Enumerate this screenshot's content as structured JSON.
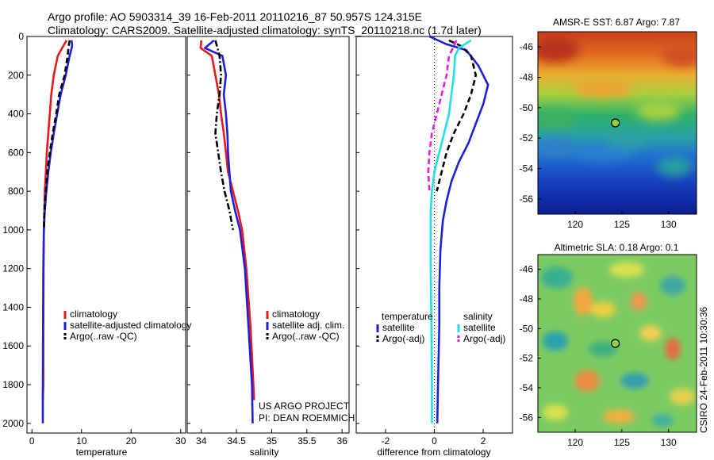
{
  "header": {
    "line1": "Argo profile: AO 5903314_39 16-Feb-2011 20110216_87 50.957S 124.315E",
    "line2": "Climatology: CARS2009. Satellite-adjusted climatology: synTS_20110218.nc (1.7d later)"
  },
  "credits": {
    "project": "US ARGO PROJECT",
    "pi": "PI: DEAN ROEMMICH",
    "stamp": "CSIRO 24-Feb-2011 10:30:36"
  },
  "colors": {
    "red": "#e41a1c",
    "blue": "#1f1fd6",
    "black": "#000000",
    "cyan": "#22e0e0",
    "magenta": "#e020e0"
  },
  "chart_data": [
    {
      "type": "line",
      "xlabel": "temperature",
      "ylim": [
        2050,
        0
      ],
      "xlim": [
        -1,
        31
      ],
      "xticks": [
        "0",
        "10",
        "20",
        "30"
      ],
      "yticks": [
        "0",
        "200",
        "400",
        "600",
        "800",
        "1000",
        "1200",
        "1400",
        "1600",
        "1800",
        "2000"
      ],
      "series": [
        {
          "name": "climatology",
          "color": "red",
          "dash": "solid",
          "x": [
            7.0,
            6.3,
            5.2,
            4.4,
            3.9,
            3.6,
            3.3,
            3.0,
            2.8,
            2.6,
            2.5,
            2.4,
            2.35,
            2.3,
            2.3,
            2.2
          ],
          "y": [
            20,
            50,
            100,
            200,
            300,
            400,
            500,
            600,
            700,
            800,
            900,
            1000,
            1200,
            1500,
            1800,
            1880
          ]
        },
        {
          "name": "satellite-adjusted climatology",
          "color": "blue",
          "dash": "solid",
          "x": [
            8.0,
            8.1,
            7.6,
            6.8,
            5.8,
            5.1,
            4.4,
            3.8,
            3.3,
            2.9,
            2.6,
            2.4,
            2.3,
            2.25,
            2.2,
            2.2
          ],
          "y": [
            20,
            50,
            100,
            200,
            300,
            400,
            500,
            600,
            700,
            800,
            900,
            1000,
            1200,
            1500,
            1800,
            2000
          ]
        },
        {
          "name": "Argo(..raw -QC)",
          "color": "black",
          "dash": "dashed",
          "x": [
            7.6,
            7.4,
            7.2,
            6.6,
            5.5,
            4.9,
            4.2,
            3.6,
            3.1,
            2.8,
            2.5,
            2.4
          ],
          "y": [
            20,
            50,
            100,
            200,
            300,
            400,
            500,
            600,
            700,
            800,
            900,
            1000
          ]
        }
      ],
      "legend": {
        "placement": "lower-right",
        "entries": [
          "climatology",
          "satellite-adjusted climatology",
          "Argo(..raw -QC)"
        ]
      }
    },
    {
      "type": "line",
      "xlabel": "salinity",
      "ylim": [
        2050,
        0
      ],
      "xlim": [
        33.8,
        36.1
      ],
      "xticks": [
        "34",
        "34.5",
        "35",
        "35.5",
        "36"
      ],
      "series": [
        {
          "name": "climatology",
          "color": "red",
          "dash": "solid",
          "x": [
            34.0,
            33.99,
            34.15,
            34.2,
            34.25,
            34.28,
            34.32,
            34.35,
            34.38,
            34.45,
            34.52,
            34.58,
            34.64,
            34.7,
            34.74,
            34.75
          ],
          "y": [
            20,
            60,
            100,
            200,
            300,
            400,
            500,
            600,
            700,
            800,
            900,
            1000,
            1200,
            1500,
            1800,
            1880
          ]
        },
        {
          "name": "satellite adj. clim.",
          "color": "blue",
          "dash": "solid",
          "x": [
            34.18,
            34.05,
            34.3,
            34.35,
            34.32,
            34.35,
            34.37,
            34.38,
            34.4,
            34.42,
            34.48,
            34.55,
            34.62,
            34.67,
            34.72,
            34.73
          ],
          "y": [
            20,
            60,
            100,
            200,
            300,
            400,
            500,
            600,
            700,
            800,
            900,
            1000,
            1200,
            1500,
            1800,
            2000
          ]
        },
        {
          "name": "Argo(..raw -QC)",
          "color": "black",
          "dash": "dashdot",
          "x": [
            34.2,
            34.23,
            34.26,
            34.28,
            34.26,
            34.22,
            34.2,
            34.24,
            34.28,
            34.33,
            34.4,
            34.45
          ],
          "y": [
            20,
            60,
            100,
            200,
            300,
            400,
            500,
            600,
            700,
            800,
            900,
            1000
          ]
        }
      ],
      "legend": {
        "placement": "lower-right",
        "entries": [
          "climatology",
          "satellite adj. clim.",
          "Argo(..raw -QC)"
        ]
      }
    },
    {
      "type": "line",
      "xlabel": "difference from climatology",
      "ylim": [
        2050,
        0
      ],
      "xlim": [
        -3.2,
        3.2
      ],
      "xticks": [
        "-2",
        "0",
        "2"
      ],
      "zero_line": "dotted",
      "series": [
        {
          "name": "temperature satellite",
          "color": "blue",
          "dash": "solid",
          "x": [
            -0.2,
            0.5,
            1.3,
            1.8,
            2.2,
            2.0,
            1.7,
            1.4,
            1.0,
            0.7,
            0.5,
            0.35,
            0.25,
            0.2,
            0.2,
            0.15,
            0.12
          ],
          "y": [
            0,
            40,
            70,
            150,
            250,
            350,
            450,
            550,
            650,
            750,
            850,
            950,
            1100,
            1300,
            1500,
            1800,
            2000
          ]
        },
        {
          "name": "temperature Argo(-adj)",
          "color": "black",
          "dash": "dashed",
          "x": [
            0.6,
            1.1,
            1.5,
            1.7,
            1.5,
            1.2,
            0.8,
            0.5,
            0.3,
            0.1
          ],
          "y": [
            20,
            50,
            100,
            200,
            300,
            400,
            500,
            600,
            700,
            800
          ]
        },
        {
          "name": "salinity satellite",
          "color": "cyan",
          "dash": "solid",
          "x": [
            1.5,
            1.0,
            0.85,
            0.8,
            0.7,
            0.6,
            0.4,
            0.2,
            0.0,
            -0.1,
            -0.15,
            -0.15,
            -0.15,
            -0.12,
            -0.1,
            -0.1
          ],
          "y": [
            20,
            60,
            100,
            200,
            300,
            400,
            500,
            600,
            700,
            800,
            900,
            1000,
            1200,
            1500,
            1800,
            2000
          ]
        },
        {
          "name": "salinity Argo(-adj)",
          "color": "magenta",
          "dash": "dashed",
          "x": [
            0.9,
            0.8,
            0.6,
            0.5,
            0.3,
            0.1,
            -0.1,
            -0.2,
            -0.25,
            -0.2
          ],
          "y": [
            20,
            50,
            100,
            200,
            300,
            400,
            500,
            600,
            700,
            800
          ]
        }
      ],
      "legend": {
        "placement": "lower-center",
        "columns": [
          {
            "title": "temperature",
            "entries": [
              "satellite",
              "Argo(-adj)"
            ]
          },
          {
            "title": "salinity",
            "entries": [
              "satellite",
              "Argo(-adj)"
            ]
          }
        ]
      }
    },
    {
      "type": "heatmap",
      "title": "AMSR-E SST: 6.87 Argo: 7.87",
      "xlim": [
        116,
        133
      ],
      "ylim": [
        -57,
        -45
      ],
      "xticks": [
        "120",
        "125",
        "130"
      ],
      "yticks": [
        "-46",
        "-48",
        "-50",
        "-52",
        "-54",
        "-56"
      ],
      "marker": {
        "lon": 124.3,
        "lat": -51.0
      }
    },
    {
      "type": "heatmap",
      "title": "Altimetric SLA: 0.18 Argo: 0.1",
      "xlim": [
        116,
        133
      ],
      "ylim": [
        -57,
        -45
      ],
      "xticks": [
        "120",
        "125",
        "130"
      ],
      "yticks": [
        "-46",
        "-48",
        "-50",
        "-52",
        "-54",
        "-56"
      ],
      "marker": {
        "lon": 124.3,
        "lat": -51.0
      }
    }
  ]
}
